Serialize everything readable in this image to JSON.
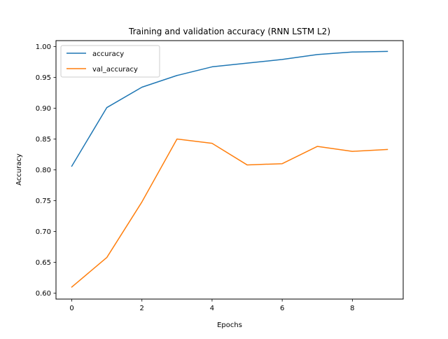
{
  "chart_data": {
    "type": "line",
    "title": "Training and validation accuracy (RNN LSTM L2)",
    "xlabel": "Epochs",
    "ylabel": "Accuracy",
    "xlim": [
      -0.45,
      9.45
    ],
    "ylim": [
      0.5905,
      1.0095
    ],
    "xticks": [
      0,
      2,
      4,
      6,
      8
    ],
    "xtick_labels": [
      "0",
      "2",
      "4",
      "6",
      "8"
    ],
    "yticks": [
      0.6,
      0.65,
      0.7,
      0.75,
      0.8,
      0.85,
      0.9,
      0.95,
      1.0
    ],
    "ytick_labels": [
      "0.60",
      "0.65",
      "0.70",
      "0.75",
      "0.80",
      "0.85",
      "0.90",
      "0.95",
      "1.00"
    ],
    "grid": false,
    "legend_position": "top-left",
    "x": [
      0,
      1,
      2,
      3,
      4,
      5,
      6,
      7,
      8,
      9
    ],
    "series": [
      {
        "name": "accuracy",
        "color": "#1f77b4",
        "values": [
          0.806,
          0.901,
          0.934,
          0.953,
          0.967,
          0.973,
          0.979,
          0.987,
          0.991,
          0.992
        ]
      },
      {
        "name": "val_accuracy",
        "color": "#ff7f0e",
        "values": [
          0.61,
          0.658,
          0.748,
          0.85,
          0.843,
          0.808,
          0.81,
          0.838,
          0.83,
          0.833
        ]
      }
    ]
  }
}
